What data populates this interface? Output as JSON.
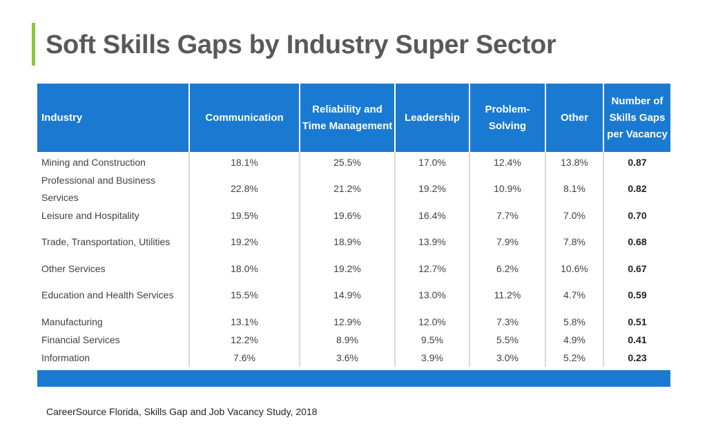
{
  "title": "Soft Skills Gaps by Industry Super Sector",
  "source": "CareerSource Florida, Skills Gap and Job Vacancy Study, 2018",
  "colors": {
    "header": "#1a7ad1",
    "accent": "#8dc63f"
  },
  "table": {
    "headers": [
      "Industry",
      "Communication",
      "Reliability and Time Management",
      "Leadership",
      "Problem-Solving",
      "Other",
      "Number of Skills Gaps per Vacancy"
    ],
    "rows": [
      [
        "Mining and Construction",
        "18.1%",
        "25.5%",
        "17.0%",
        "12.4%",
        "13.8%",
        "0.87"
      ],
      [
        "Professional and Business Services",
        "22.8%",
        "21.2%",
        "19.2%",
        "10.9%",
        "8.1%",
        "0.82"
      ],
      [
        "Leisure and Hospitality",
        "19.5%",
        "19.6%",
        "16.4%",
        "7.7%",
        "7.0%",
        "0.70"
      ],
      [
        "Trade, Transportation, Utilities",
        "19.2%",
        "18.9%",
        "13.9%",
        "7.9%",
        "7.8%",
        "0.68"
      ],
      [
        "Other Services",
        "18.0%",
        "19.2%",
        "12.7%",
        "6.2%",
        "10.6%",
        "0.67"
      ],
      [
        "Education and Health Services",
        "15.5%",
        "14.9%",
        "13.0%",
        "11.2%",
        "4.7%",
        "0.59"
      ],
      [
        "Manufacturing",
        "13.1%",
        "12.9%",
        "12.0%",
        "7.3%",
        "5.8%",
        "0.51"
      ],
      [
        "Financial Services",
        "12.2%",
        "8.9%",
        "9.5%",
        "5.5%",
        "4.9%",
        "0.41"
      ],
      [
        "Information",
        "7.6%",
        "3.6%",
        "3.9%",
        "3.0%",
        "5.2%",
        "0.23"
      ]
    ]
  }
}
